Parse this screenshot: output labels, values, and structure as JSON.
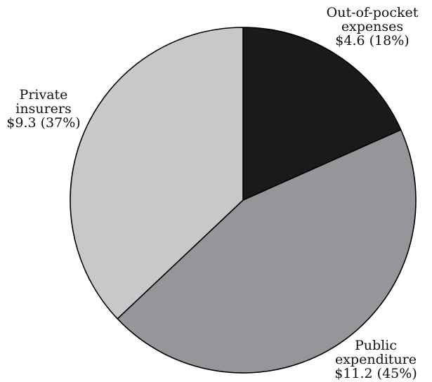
{
  "chart_data": {
    "type": "pie",
    "title": "",
    "start_angle_deg": 0,
    "direction": "clockwise",
    "slices": [
      {
        "key": "out_of_pocket",
        "name": "Out-of-pocket expenses",
        "value": 4.6,
        "percent": 18,
        "color": "#1a1a1a",
        "label_lines": [
          "Out-of-pocket",
          "expenses",
          "$4.6 (18%)"
        ]
      },
      {
        "key": "public",
        "name": "Public expenditure",
        "value": 11.2,
        "percent": 45,
        "color": "#95969a",
        "label_lines": [
          "Public",
          "expenditure",
          "$11.2 (45%)"
        ]
      },
      {
        "key": "private",
        "name": "Private insurers",
        "value": 9.3,
        "percent": 37,
        "color": "#c7c8ca",
        "label_lines": [
          "Private",
          "insurers",
          "$9.3 (37%)"
        ]
      }
    ]
  }
}
